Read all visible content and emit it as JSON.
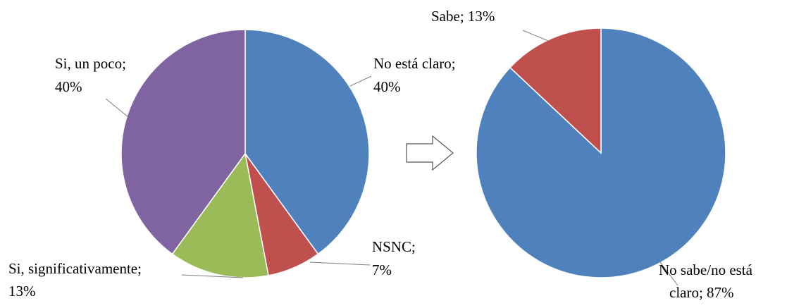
{
  "chart_data": [
    {
      "type": "pie",
      "values": [
        40,
        7,
        13,
        40
      ],
      "value_labels": [
        [
          "No está claro;",
          "40%"
        ],
        [
          "NSNC;",
          "7%"
        ],
        [
          "Si, significativamente;",
          "13%"
        ],
        [
          "Si, un poco;",
          "40%"
        ]
      ],
      "colors": [
        "#4f81bd",
        "#c0504d",
        "#9bbb59",
        "#8064a2"
      ]
    },
    {
      "type": "pie",
      "values": [
        87,
        13
      ],
      "value_labels": [
        [
          "No sabe/no está",
          "claro; 87%"
        ],
        [
          "Sabe; 13%"
        ]
      ],
      "colors": [
        "#4f81bd",
        "#c0504d"
      ]
    }
  ]
}
